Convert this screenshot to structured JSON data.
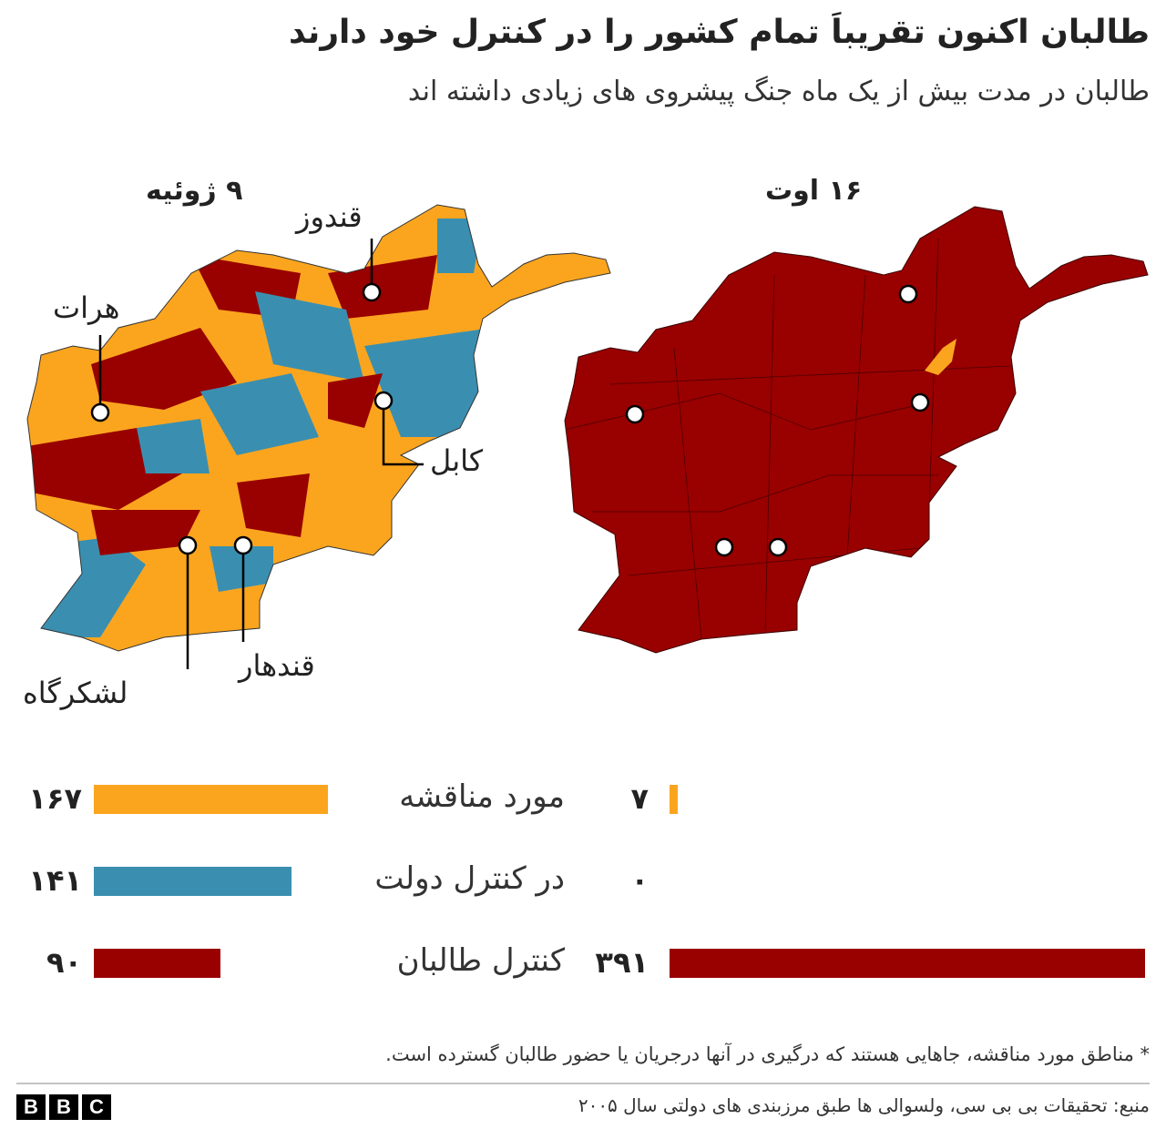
{
  "header": {
    "title": "طالبان اکنون تقریباَ تمام کشور را در کنترل خود دارند",
    "subtitle": "طالبان در مدت بیش از یک ماه جنگ پیشروی های زیادی داشته اند"
  },
  "maps": {
    "left_title": "۹ ژوئیه",
    "right_title": "۱۶ اوت",
    "cities": [
      "هرات",
      "قندوز",
      "کابل",
      "لشکرگاه",
      "قندهار"
    ]
  },
  "chart_data": [
    {
      "type": "bar",
      "orientation": "horizontal",
      "categories": [
        "مورد مناقشه",
        "در کنترل دولت",
        "کنترل طالبان"
      ],
      "values": [
        167,
        141,
        90
      ],
      "value_labels": [
        "۱۶۷",
        "۱۴۱",
        "۹۰"
      ],
      "colors": [
        "#fba51f",
        "#3a8fb0",
        "#990000"
      ]
    },
    {
      "type": "bar",
      "orientation": "horizontal",
      "values": [
        7,
        0,
        391
      ],
      "value_labels": [
        "۷",
        "۰",
        "۳۹۱"
      ],
      "colors": [
        "#fba51f",
        "#3a8fb0",
        "#990000"
      ]
    }
  ],
  "footer": {
    "note": "* مناطق مورد مناقشه، جاهایی هستند که درگیری در آنها درجریان یا حضور طالبان گسترده است.",
    "source": "منبع: تحقیقات بی بی سی، ولسوالی ها طبق مرزبندی های دولتی سال ۲۰۰۵",
    "logo": [
      "B",
      "B",
      "C"
    ]
  }
}
